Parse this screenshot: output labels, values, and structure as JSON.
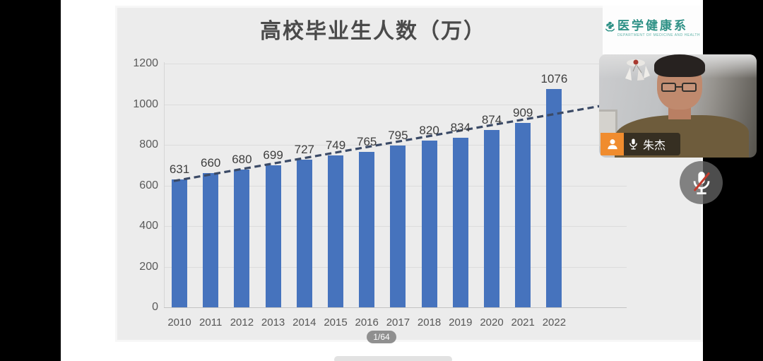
{
  "chart_data": {
    "type": "bar",
    "title": "高校毕业生人数（万）",
    "categories": [
      "2010",
      "2011",
      "2012",
      "2013",
      "2014",
      "2015",
      "2016",
      "2017",
      "2018",
      "2019",
      "2020",
      "2021",
      "2022"
    ],
    "values": [
      631,
      660,
      680,
      699,
      727,
      749,
      765,
      795,
      820,
      834,
      874,
      909,
      1076
    ],
    "xlabel": "",
    "ylabel": "",
    "ylim": [
      0,
      1200
    ],
    "yticks": [
      0,
      200,
      400,
      600,
      800,
      1000,
      1200
    ],
    "grid": true,
    "legend": "none",
    "data_labels": true,
    "bar_color": "#4673bd",
    "trendline": {
      "style": "dashed",
      "color": "#3b4a66",
      "start_value": 622,
      "end_value": 1012
    }
  },
  "logo": {
    "title": "医学健康系",
    "subtitle": "DEPARTMENT OF MEDICINE AND HEALTH",
    "color": "#2e9186"
  },
  "meeting": {
    "participant_name": "朱杰",
    "page_indicator": "1/64",
    "mic_state": "muted"
  },
  "colors": {
    "bar_blue": "#4673bd",
    "trendline_navy": "#3b4a66",
    "logo_teal": "#2e9186",
    "badge_orange": "#f08c2e",
    "mute_red": "#c43b2d",
    "slide_bg": "#ececec"
  }
}
